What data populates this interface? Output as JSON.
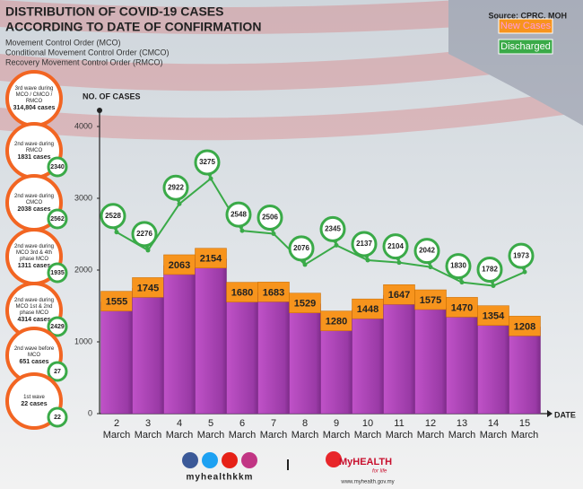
{
  "title_lines": [
    "DISTRIBUTION OF COVID-19 CASES",
    "ACCORDING TO DATE OF CONFIRMATION"
  ],
  "subtitle_lines": [
    "Movement Control Order (MCO)",
    "Conditional Movement Control Order (CMCO)",
    "Recovery Movement Control Order (RMCO)"
  ],
  "source": "Source: CPRC, MOH",
  "waves": [
    {
      "label": "3rd wave during MCO / CMCO / RMCO",
      "cases": "314,804 cases"
    },
    {
      "label": "2nd wave during RMCO",
      "cases": "1831 cases",
      "discharged": 2340
    },
    {
      "label": "2nd wave during CMCO",
      "cases": "2038 cases",
      "discharged": 2562
    },
    {
      "label": "2nd wave during MCO 3rd & 4th phase MCO",
      "cases": "1311 cases",
      "discharged": 1935
    },
    {
      "label": "2nd wave during MCO 1st & 2nd phase MCO",
      "cases": "4314 cases",
      "discharged": 2429
    },
    {
      "label": "2nd wave before MCO",
      "cases": "651 cases",
      "discharged": 27
    },
    {
      "label": "1st wave",
      "cases": "22 cases",
      "discharged": 22
    }
  ],
  "footer": {
    "handle": "myhealthkkm",
    "brand": "MyHEALTH",
    "tagline": "for life",
    "url": "www.myhealth.gov.my"
  },
  "chart_data": {
    "type": "bar",
    "y_label": "NO. OF CASES",
    "x_label": "DATE",
    "categories": [
      "2 March",
      "3 March",
      "4 March",
      "5 March",
      "6 March",
      "7 March",
      "8 March",
      "9 March",
      "10 March",
      "11 March",
      "12 March",
      "13 March",
      "14 March",
      "15 March"
    ],
    "series": [
      {
        "name": "New Cases",
        "color": "#b046bc",
        "label_color": "#f7941d",
        "values": [
          1555,
          1745,
          2063,
          2154,
          1680,
          1683,
          1529,
          1280,
          1448,
          1647,
          1575,
          1470,
          1354,
          1208
        ]
      },
      {
        "name": "Discharged",
        "type": "line",
        "color": "#3aaa48",
        "values": [
          2528,
          2276,
          2922,
          3275,
          2548,
          2506,
          2076,
          2345,
          2137,
          2104,
          2042,
          1830,
          1782,
          1973
        ]
      }
    ],
    "ylim": [
      0,
      4000
    ],
    "yticks": [
      0,
      1000,
      2000,
      3000,
      4000
    ]
  }
}
